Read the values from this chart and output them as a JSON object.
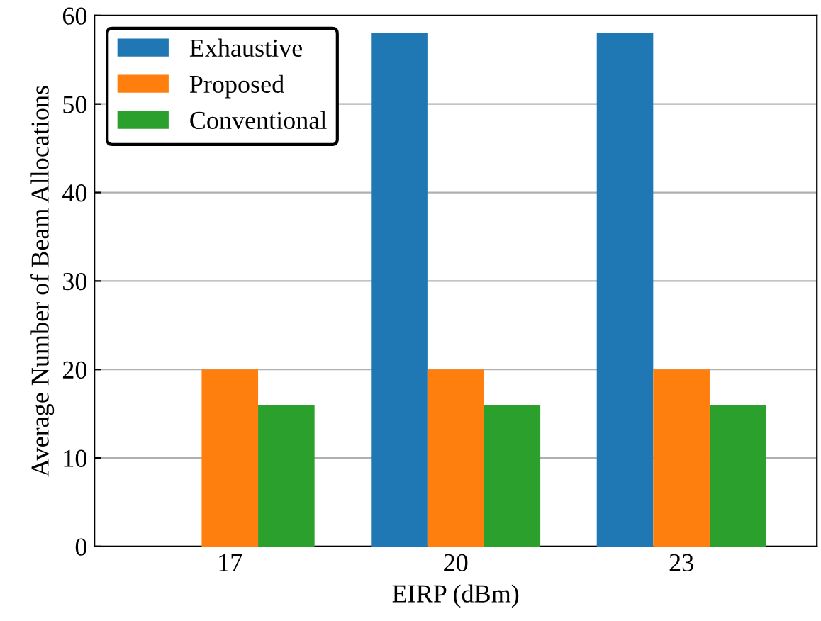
{
  "chart_data": {
    "type": "bar",
    "xlabel": "EIRP (dBm)",
    "ylabel": "Average Number of Beam Allocations",
    "categories": [
      "17",
      "20",
      "23"
    ],
    "series": [
      {
        "name": "Exhaustive",
        "color": "#1f77b4",
        "values": [
          null,
          58,
          58
        ]
      },
      {
        "name": "Proposed",
        "color": "#ff7f0e",
        "values": [
          20,
          20,
          20
        ]
      },
      {
        "name": "Conventional",
        "color": "#2ca02c",
        "values": [
          16,
          16,
          16
        ]
      }
    ],
    "ylim": [
      0,
      60
    ],
    "yticks": [
      0,
      10,
      20,
      30,
      40,
      50,
      60
    ],
    "grid": "y",
    "legend": "top left"
  }
}
